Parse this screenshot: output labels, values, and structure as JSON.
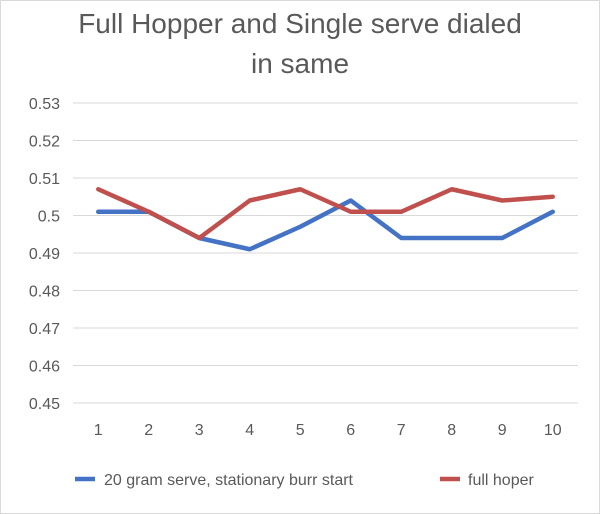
{
  "chart_data": {
    "type": "line",
    "title_lines": [
      "Full Hopper and Single serve dialed",
      "in same"
    ],
    "title": "Full Hopper and Single serve dialed in same",
    "xlabel": "",
    "ylabel": "",
    "categories": [
      "1",
      "2",
      "3",
      "4",
      "5",
      "6",
      "7",
      "8",
      "9",
      "10"
    ],
    "ylim": [
      0.45,
      0.53
    ],
    "yticks": [
      "0.45",
      "0.46",
      "0.47",
      "0.48",
      "0.49",
      "0.5",
      "0.51",
      "0.52",
      "0.53"
    ],
    "ytick_values": [
      0.45,
      0.46,
      0.47,
      0.48,
      0.49,
      0.5,
      0.51,
      0.52,
      0.53
    ],
    "grid": "horizontal",
    "legend_position": "bottom",
    "series": [
      {
        "name": "20 gram serve, stationary burr start",
        "color": "#4472C4",
        "values": [
          0.501,
          0.501,
          0.494,
          0.491,
          0.497,
          0.504,
          0.494,
          0.494,
          0.494,
          0.501
        ]
      },
      {
        "name": "full hoper",
        "color": "#C0504D",
        "values": [
          0.507,
          0.501,
          0.494,
          0.504,
          0.507,
          0.501,
          0.501,
          0.507,
          0.504,
          0.505
        ]
      }
    ]
  }
}
